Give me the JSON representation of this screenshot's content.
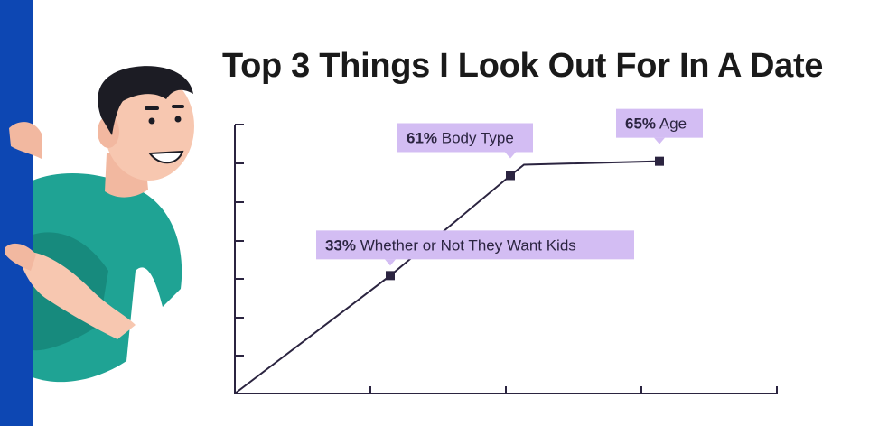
{
  "chart_data": {
    "type": "line",
    "title": "Top 3 Things I Look Out For In A Date",
    "xlabel": "",
    "ylabel": "",
    "categories": [
      "Whether or Not They Want Kids",
      "Body Type",
      "Age"
    ],
    "values": [
      33,
      61,
      65
    ],
    "value_suffix": "%",
    "ylim": [
      0,
      70
    ],
    "grid": false,
    "colors": {
      "line": "#2b2440",
      "marker": "#2b2440",
      "callout_bg": "#d3bdf3",
      "axis": "#2b2440"
    }
  }
}
